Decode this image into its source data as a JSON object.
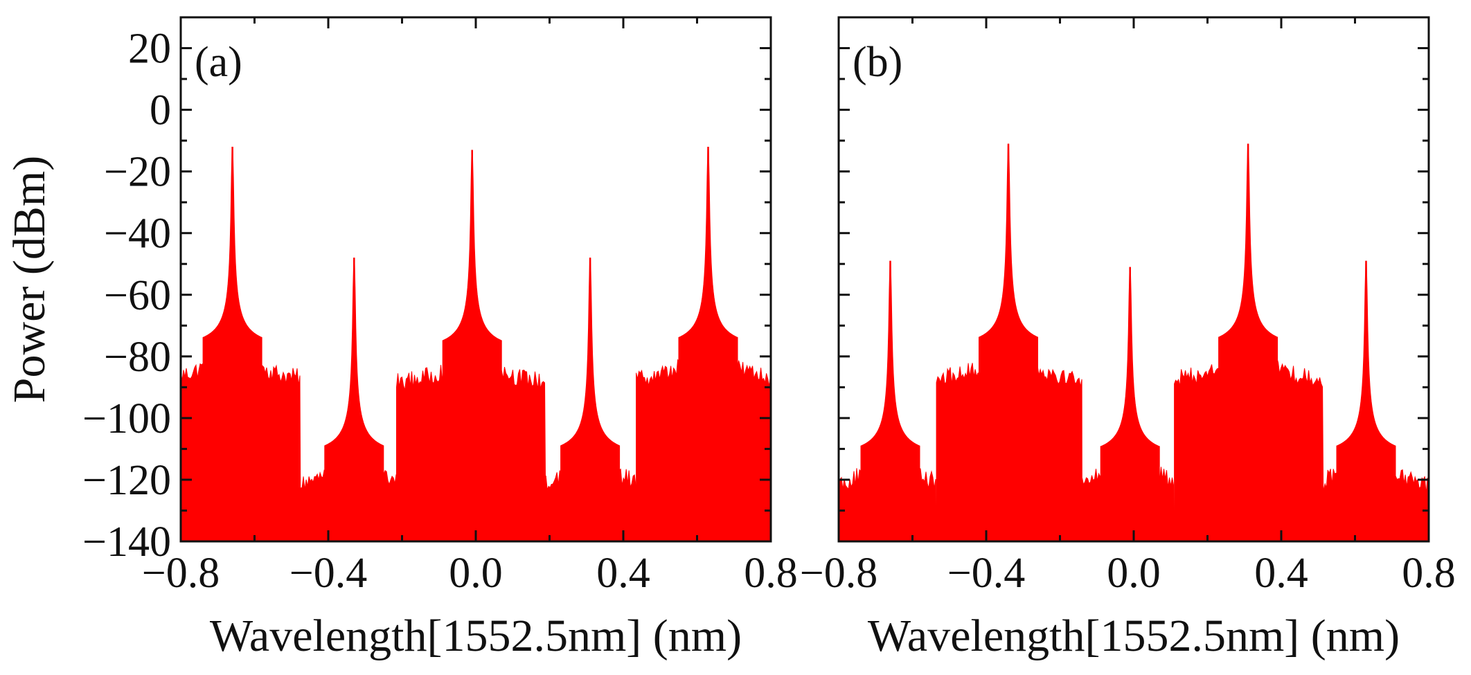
{
  "chart_data": [
    {
      "type": "line",
      "panel_label": "(a)",
      "xlabel": "Wavelength[1552.5nm] (nm)",
      "ylabel": "Power (dBm)",
      "xlim": [
        -0.8,
        0.8
      ],
      "ylim": [
        -140,
        30
      ],
      "xticks": [
        -0.8,
        -0.4,
        0.0,
        0.4,
        0.8
      ],
      "xtick_labels": [
        "−0.8",
        "−0.4",
        "0.0",
        "0.4",
        "0.8"
      ],
      "yticks": [
        20,
        0,
        -20,
        -40,
        -60,
        -80,
        -100,
        -120,
        -140
      ],
      "ytick_labels": [
        "20",
        "0",
        "−20",
        "−40",
        "−60",
        "−80",
        "−100",
        "−120",
        "−140"
      ],
      "series_color": "#ff0000",
      "peaks": [
        {
          "x": -0.66,
          "y": -12
        },
        {
          "x": -0.33,
          "y": -48
        },
        {
          "x": -0.01,
          "y": -13
        },
        {
          "x": 0.31,
          "y": -48
        },
        {
          "x": 0.63,
          "y": -12
        }
      ],
      "noise_floor_segments": [
        {
          "x_start": -0.8,
          "x_end": -0.475,
          "floor_top": -88,
          "floor_bottom": -140
        },
        {
          "x_start": -0.475,
          "x_end": -0.215,
          "floor_top": -123,
          "floor_bottom": -140
        },
        {
          "x_start": -0.215,
          "x_end": 0.19,
          "floor_top": -89,
          "floor_bottom": -140
        },
        {
          "x_start": 0.19,
          "x_end": 0.435,
          "floor_top": -123,
          "floor_bottom": -140
        },
        {
          "x_start": 0.435,
          "x_end": 0.8,
          "floor_top": -88,
          "floor_bottom": -140
        }
      ]
    },
    {
      "type": "line",
      "panel_label": "(b)",
      "xlabel": "Wavelength[1552.5nm] (nm)",
      "ylabel": "",
      "xlim": [
        -0.8,
        0.8
      ],
      "ylim": [
        -140,
        30
      ],
      "xticks": [
        -0.8,
        -0.4,
        0.0,
        0.4,
        0.8
      ],
      "xtick_labels": [
        "−0.8",
        "−0.4",
        "0.0",
        "0.4",
        "0.8"
      ],
      "yticks": [
        20,
        0,
        -20,
        -40,
        -60,
        -80,
        -100,
        -120,
        -140
      ],
      "ytick_labels": [],
      "series_color": "#ff0000",
      "peaks": [
        {
          "x": -0.66,
          "y": -49
        },
        {
          "x": -0.34,
          "y": -11
        },
        {
          "x": -0.01,
          "y": -51
        },
        {
          "x": 0.31,
          "y": -11
        },
        {
          "x": 0.63,
          "y": -49
        }
      ],
      "noise_floor_segments": [
        {
          "x_start": -0.8,
          "x_end": -0.535,
          "floor_top": -123,
          "floor_bottom": -140
        },
        {
          "x_start": -0.535,
          "x_end": -0.14,
          "floor_top": -88,
          "floor_bottom": -140
        },
        {
          "x_start": -0.14,
          "x_end": 0.11,
          "floor_top": -123,
          "floor_bottom": -140
        },
        {
          "x_start": 0.11,
          "x_end": 0.515,
          "floor_top": -88,
          "floor_bottom": -140
        },
        {
          "x_start": 0.515,
          "x_end": 0.8,
          "floor_top": -123,
          "floor_bottom": -140
        }
      ]
    }
  ]
}
